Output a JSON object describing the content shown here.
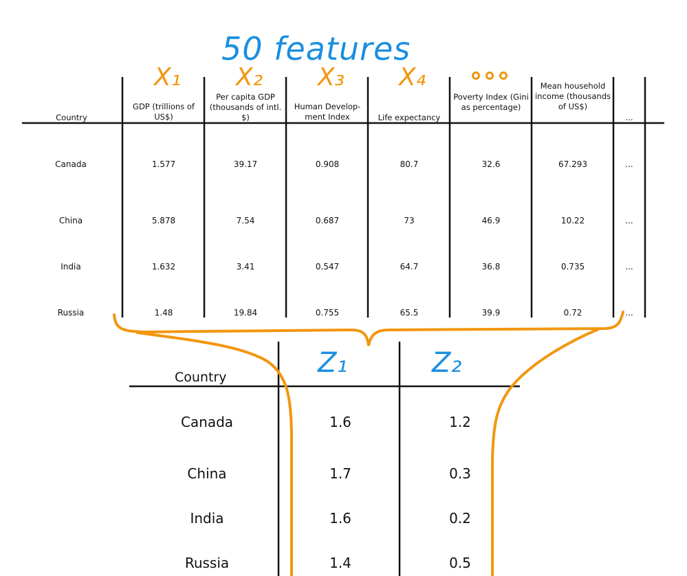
{
  "annotation": {
    "features_label": "50 features",
    "x_labels": [
      "X₁",
      "X₂",
      "X₃",
      "X₄"
    ],
    "z_labels": [
      "Z₁",
      "Z₂"
    ]
  },
  "top_table": {
    "headers": [
      "Country",
      "GDP (trillions of US$)",
      "Per capita GDP (thousands of intl. $)",
      "Human Develop-ment Index",
      "Life expectancy",
      "Poverty Index (Gini as percentage)",
      "Mean household income (thousands of US$)",
      "..."
    ],
    "rows": [
      {
        "country": "Canada",
        "values": [
          "1.577",
          "39.17",
          "0.908",
          "80.7",
          "32.6",
          "67.293",
          "..."
        ]
      },
      {
        "country": "China",
        "values": [
          "5.878",
          "7.54",
          "0.687",
          "73",
          "46.9",
          "10.22",
          "..."
        ]
      },
      {
        "country": "India",
        "values": [
          "1.632",
          "3.41",
          "0.547",
          "64.7",
          "36.8",
          "0.735",
          "..."
        ]
      },
      {
        "country": "Russia",
        "values": [
          "1.48",
          "19.84",
          "0.755",
          "65.5",
          "39.9",
          "0.72",
          "..."
        ]
      }
    ]
  },
  "bottom_table": {
    "header": "Country",
    "rows": [
      {
        "country": "Canada",
        "z1": "1.6",
        "z2": "1.2"
      },
      {
        "country": "China",
        "z1": "1.7",
        "z2": "0.3"
      },
      {
        "country": "India",
        "z1": "1.6",
        "z2": "0.2"
      },
      {
        "country": "Russia",
        "z1": "1.4",
        "z2": "0.5"
      }
    ]
  },
  "colors": {
    "annotation_blue": "#1a8fe0",
    "annotation_orange": "#f2960f",
    "ink": "#111111"
  }
}
